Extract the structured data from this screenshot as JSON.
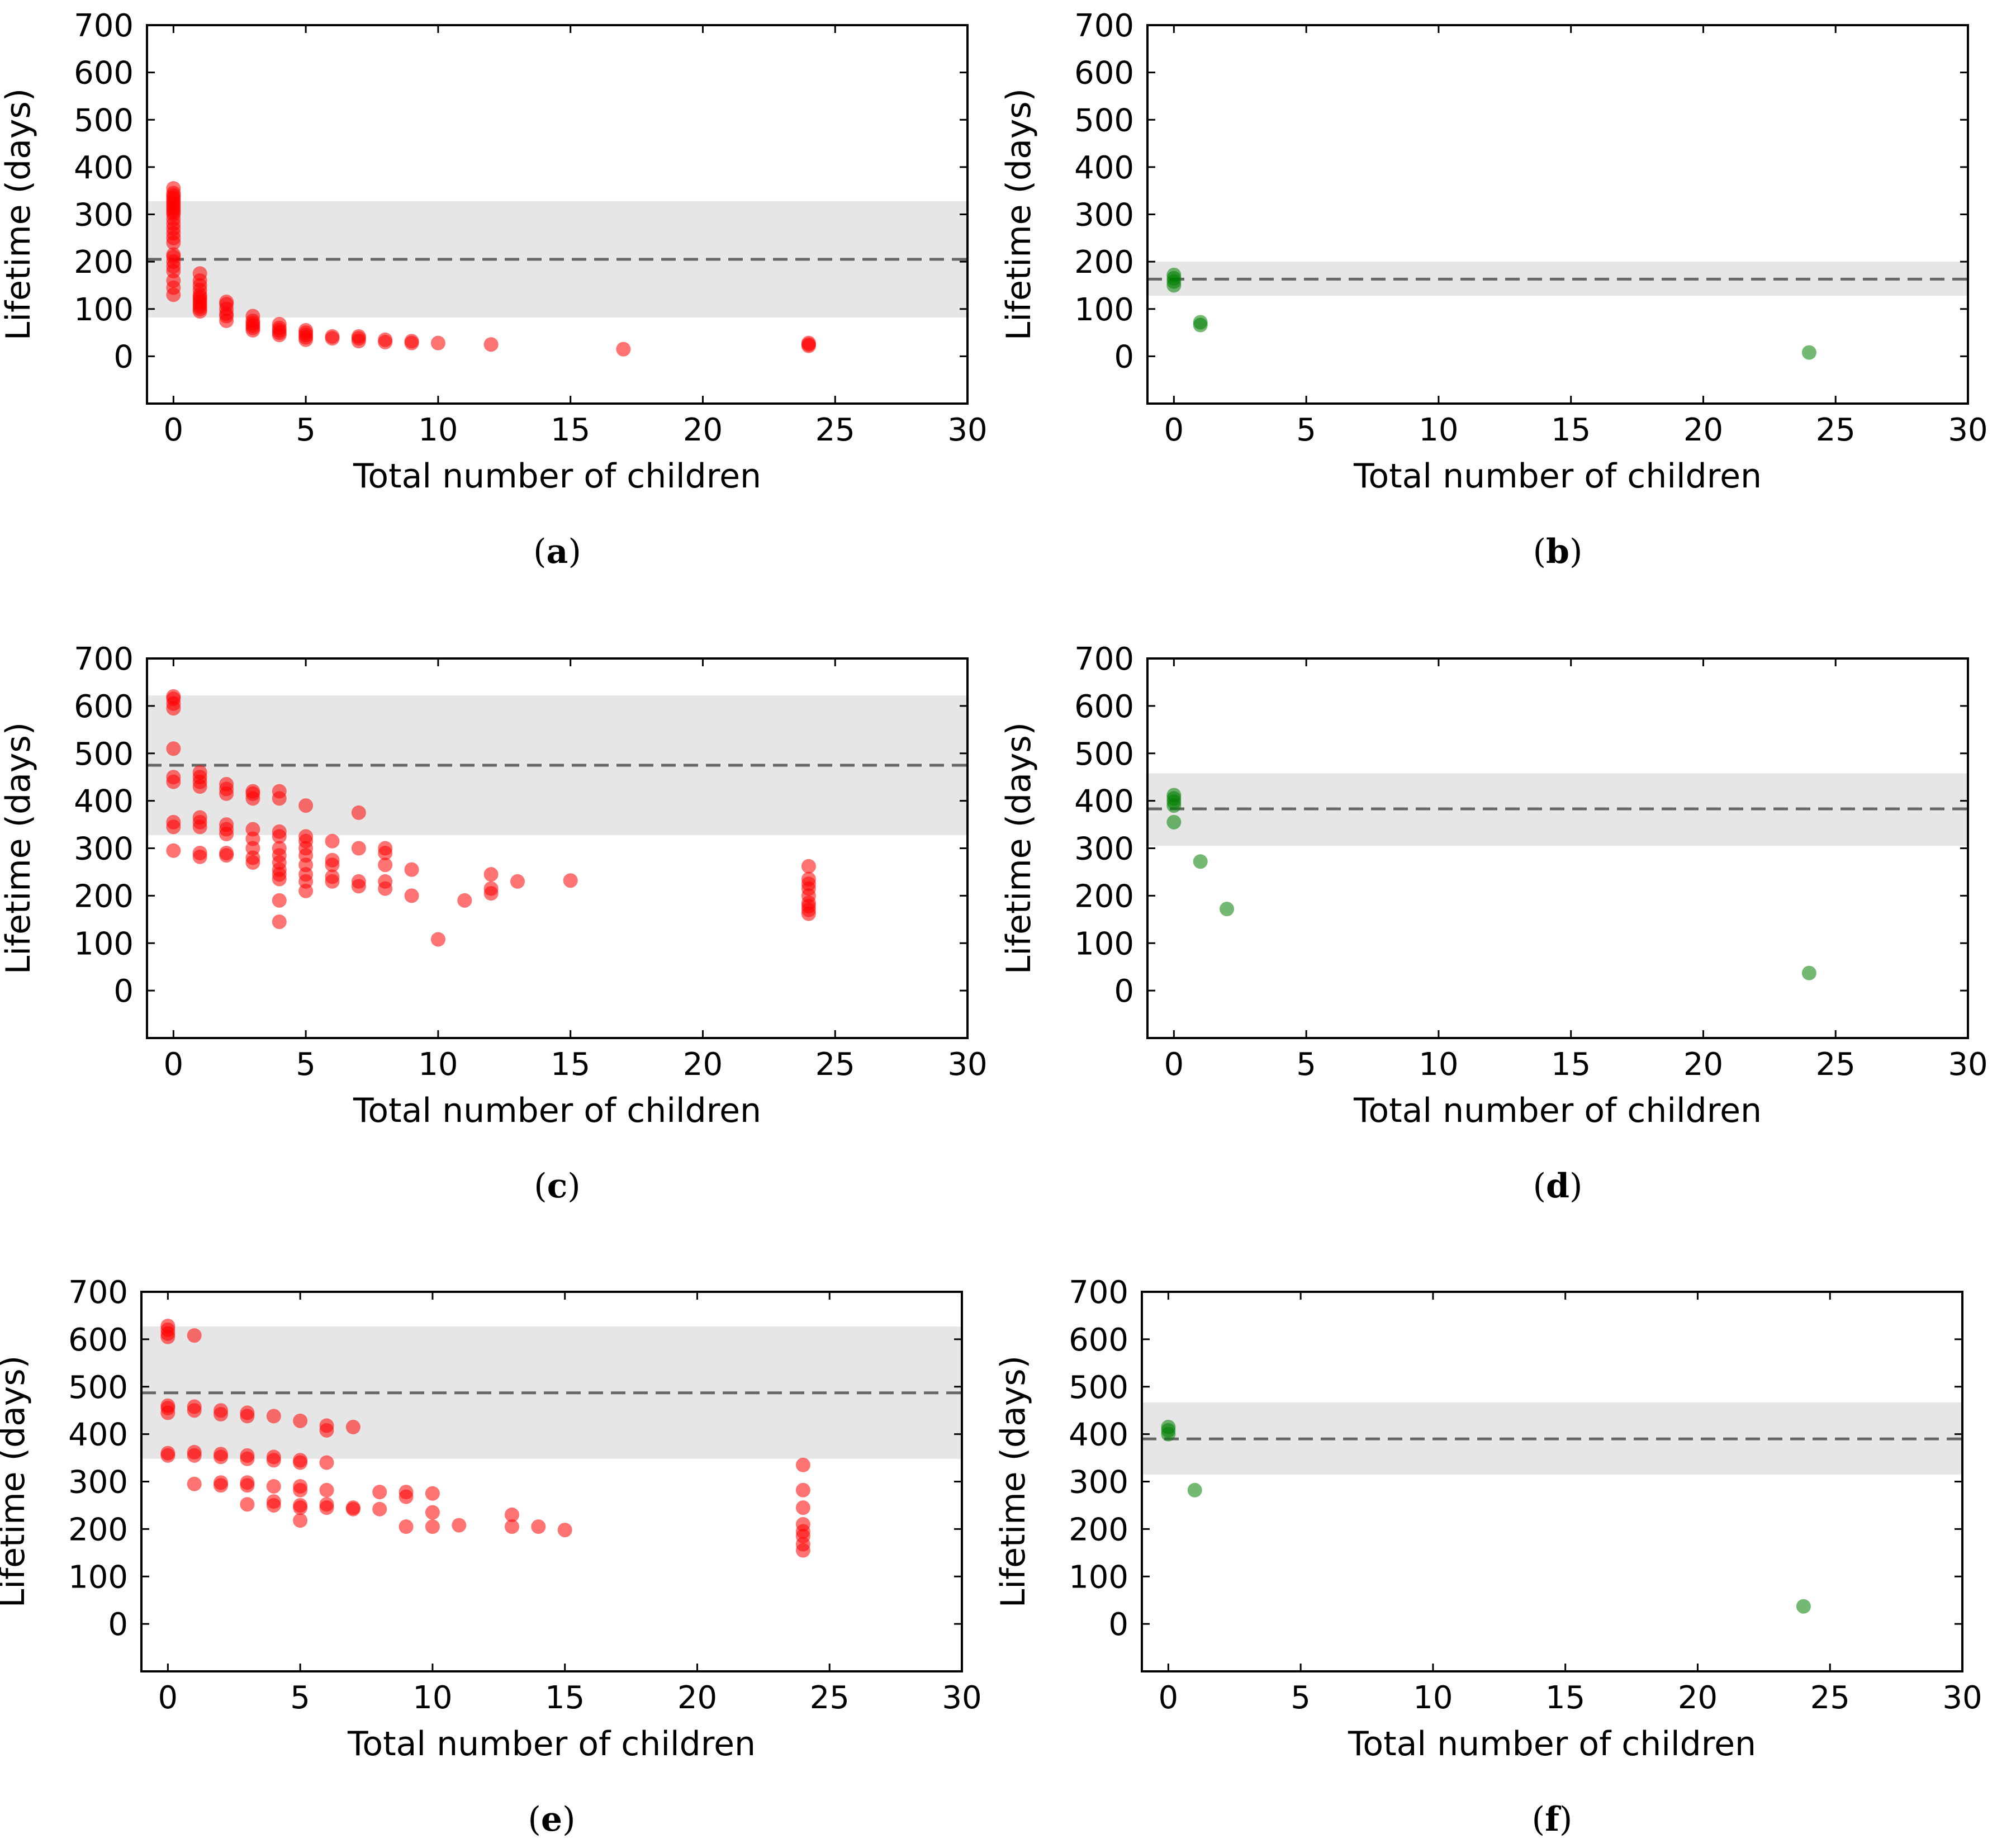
{
  "chart_data": [
    {
      "panel": "a",
      "caption_letter": "a",
      "type": "scatter",
      "xlabel": "Total number of children",
      "ylabel": "Lifetime (days)",
      "xlim": [
        -1,
        30
      ],
      "ylim": [
        -100,
        700
      ],
      "xticks": [
        0,
        5,
        10,
        15,
        20,
        25,
        30
      ],
      "yticks": [
        0,
        100,
        200,
        300,
        400,
        500,
        600,
        700
      ],
      "colors": {
        "marker": "#ff0000",
        "band": "#e6e6e6",
        "mean_line": "#666666"
      },
      "mean": 205,
      "band": [
        82,
        328
      ],
      "points": [
        [
          0,
          130
        ],
        [
          0,
          145
        ],
        [
          0,
          160
        ],
        [
          0,
          180
        ],
        [
          0,
          190
        ],
        [
          0,
          200
        ],
        [
          0,
          210
        ],
        [
          0,
          215
        ],
        [
          0,
          240
        ],
        [
          0,
          250
        ],
        [
          0,
          260
        ],
        [
          0,
          270
        ],
        [
          0,
          280
        ],
        [
          0,
          290
        ],
        [
          0,
          300
        ],
        [
          0,
          305
        ],
        [
          0,
          310
        ],
        [
          0,
          315
        ],
        [
          0,
          320
        ],
        [
          0,
          325
        ],
        [
          0,
          330
        ],
        [
          0,
          335
        ],
        [
          0,
          340
        ],
        [
          0,
          345
        ],
        [
          0,
          355
        ],
        [
          1,
          95
        ],
        [
          1,
          100
        ],
        [
          1,
          105
        ],
        [
          1,
          110
        ],
        [
          1,
          115
        ],
        [
          1,
          120
        ],
        [
          1,
          125
        ],
        [
          1,
          130
        ],
        [
          1,
          140
        ],
        [
          1,
          150
        ],
        [
          1,
          160
        ],
        [
          1,
          175
        ],
        [
          2,
          75
        ],
        [
          2,
          85
        ],
        [
          2,
          90
        ],
        [
          2,
          100
        ],
        [
          2,
          110
        ],
        [
          2,
          115
        ],
        [
          3,
          55
        ],
        [
          3,
          60
        ],
        [
          3,
          65
        ],
        [
          3,
          70
        ],
        [
          3,
          75
        ],
        [
          3,
          85
        ],
        [
          4,
          45
        ],
        [
          4,
          50
        ],
        [
          4,
          55
        ],
        [
          4,
          60
        ],
        [
          4,
          68
        ],
        [
          5,
          35
        ],
        [
          5,
          40
        ],
        [
          5,
          45
        ],
        [
          5,
          50
        ],
        [
          5,
          55
        ],
        [
          6,
          38
        ],
        [
          6,
          42
        ],
        [
          7,
          32
        ],
        [
          7,
          38
        ],
        [
          7,
          42
        ],
        [
          8,
          30
        ],
        [
          8,
          35
        ],
        [
          9,
          28
        ],
        [
          9,
          32
        ],
        [
          10,
          28
        ],
        [
          12,
          25
        ],
        [
          17,
          15
        ],
        [
          24,
          22
        ],
        [
          24,
          25
        ],
        [
          24,
          28
        ]
      ]
    },
    {
      "panel": "b",
      "caption_letter": "b",
      "type": "scatter",
      "xlabel": "Total number of children",
      "ylabel": "Lifetime (days)",
      "xlim": [
        -1,
        30
      ],
      "ylim": [
        -100,
        700
      ],
      "xticks": [
        0,
        5,
        10,
        15,
        20,
        25,
        30
      ],
      "yticks": [
        0,
        100,
        200,
        300,
        400,
        500,
        600,
        700
      ],
      "colors": {
        "marker": "#007f00",
        "band": "#e6e6e6",
        "mean_line": "#666666"
      },
      "mean": 163,
      "band": [
        128,
        200
      ],
      "points": [
        [
          0,
          150
        ],
        [
          0,
          158
        ],
        [
          0,
          165
        ],
        [
          0,
          172
        ],
        [
          1,
          66
        ],
        [
          1,
          72
        ],
        [
          24,
          8
        ]
      ]
    },
    {
      "panel": "c",
      "caption_letter": "c",
      "type": "scatter",
      "xlabel": "Total number of children",
      "ylabel": "Lifetime (days)",
      "xlim": [
        -1,
        30
      ],
      "ylim": [
        -100,
        700
      ],
      "xticks": [
        0,
        5,
        10,
        15,
        20,
        25,
        30
      ],
      "yticks": [
        0,
        100,
        200,
        300,
        400,
        500,
        600,
        700
      ],
      "colors": {
        "marker": "#ff0000",
        "band": "#e6e6e6",
        "mean_line": "#666666"
      },
      "mean": 475,
      "band": [
        328,
        622
      ],
      "points": [
        [
          0,
          295
        ],
        [
          0,
          345
        ],
        [
          0,
          355
        ],
        [
          0,
          440
        ],
        [
          0,
          450
        ],
        [
          0,
          510
        ],
        [
          0,
          595
        ],
        [
          0,
          605
        ],
        [
          0,
          615
        ],
        [
          0,
          620
        ],
        [
          1,
          282
        ],
        [
          1,
          290
        ],
        [
          1,
          345
        ],
        [
          1,
          355
        ],
        [
          1,
          365
        ],
        [
          1,
          430
        ],
        [
          1,
          440
        ],
        [
          1,
          450
        ],
        [
          1,
          460
        ],
        [
          2,
          285
        ],
        [
          2,
          290
        ],
        [
          2,
          330
        ],
        [
          2,
          340
        ],
        [
          2,
          350
        ],
        [
          2,
          415
        ],
        [
          2,
          425
        ],
        [
          2,
          435
        ],
        [
          3,
          270
        ],
        [
          3,
          280
        ],
        [
          3,
          300
        ],
        [
          3,
          320
        ],
        [
          3,
          340
        ],
        [
          3,
          405
        ],
        [
          3,
          415
        ],
        [
          3,
          420
        ],
        [
          4,
          145
        ],
        [
          4,
          190
        ],
        [
          4,
          235
        ],
        [
          4,
          245
        ],
        [
          4,
          255
        ],
        [
          4,
          270
        ],
        [
          4,
          285
        ],
        [
          4,
          300
        ],
        [
          4,
          325
        ],
        [
          4,
          335
        ],
        [
          4,
          405
        ],
        [
          4,
          420
        ],
        [
          5,
          210
        ],
        [
          5,
          230
        ],
        [
          5,
          245
        ],
        [
          5,
          265
        ],
        [
          5,
          285
        ],
        [
          5,
          300
        ],
        [
          5,
          315
        ],
        [
          5,
          325
        ],
        [
          5,
          390
        ],
        [
          6,
          230
        ],
        [
          6,
          240
        ],
        [
          6,
          265
        ],
        [
          6,
          275
        ],
        [
          6,
          315
        ],
        [
          7,
          220
        ],
        [
          7,
          230
        ],
        [
          7,
          300
        ],
        [
          7,
          375
        ],
        [
          8,
          215
        ],
        [
          8,
          230
        ],
        [
          8,
          265
        ],
        [
          8,
          290
        ],
        [
          8,
          300
        ],
        [
          9,
          200
        ],
        [
          9,
          255
        ],
        [
          10,
          108
        ],
        [
          11,
          190
        ],
        [
          12,
          205
        ],
        [
          12,
          215
        ],
        [
          12,
          245
        ],
        [
          13,
          230
        ],
        [
          15,
          232
        ],
        [
          24,
          162
        ],
        [
          24,
          170
        ],
        [
          24,
          178
        ],
        [
          24,
          185
        ],
        [
          24,
          200
        ],
        [
          24,
          215
        ],
        [
          24,
          225
        ],
        [
          24,
          235
        ],
        [
          24,
          262
        ]
      ]
    },
    {
      "panel": "d",
      "caption_letter": "d",
      "type": "scatter",
      "xlabel": "Total number of children",
      "ylabel": "Lifetime (days)",
      "xlim": [
        -1,
        30
      ],
      "ylim": [
        -100,
        700
      ],
      "xticks": [
        0,
        5,
        10,
        15,
        20,
        25,
        30
      ],
      "yticks": [
        0,
        100,
        200,
        300,
        400,
        500,
        600,
        700
      ],
      "colors": {
        "marker": "#007f00",
        "band": "#e6e6e6",
        "mean_line": "#666666"
      },
      "mean": 383,
      "band": [
        305,
        458
      ],
      "points": [
        [
          0,
          355
        ],
        [
          0,
          390
        ],
        [
          0,
          398
        ],
        [
          0,
          405
        ],
        [
          0,
          412
        ],
        [
          1,
          272
        ],
        [
          2,
          172
        ],
        [
          24,
          37
        ]
      ]
    },
    {
      "panel": "e",
      "caption_letter": "e",
      "type": "scatter",
      "xlabel": "Total number of children",
      "ylabel": "Lifetime (days)",
      "xlim": [
        -1,
        30
      ],
      "ylim": [
        -100,
        700
      ],
      "xticks": [
        0,
        5,
        10,
        15,
        20,
        25,
        30
      ],
      "yticks": [
        0,
        100,
        200,
        300,
        400,
        500,
        600,
        700
      ],
      "colors": {
        "marker": "#ff0000",
        "band": "#e6e6e6",
        "mean_line": "#666666"
      },
      "mean": 487,
      "band": [
        348,
        627
      ],
      "points": [
        [
          0,
          355
        ],
        [
          0,
          360
        ],
        [
          0,
          445
        ],
        [
          0,
          455
        ],
        [
          0,
          460
        ],
        [
          0,
          605
        ],
        [
          0,
          612
        ],
        [
          0,
          620
        ],
        [
          0,
          628
        ],
        [
          1,
          295
        ],
        [
          1,
          355
        ],
        [
          1,
          362
        ],
        [
          1,
          450
        ],
        [
          1,
          458
        ],
        [
          1,
          608
        ],
        [
          2,
          292
        ],
        [
          2,
          298
        ],
        [
          2,
          352
        ],
        [
          2,
          358
        ],
        [
          2,
          442
        ],
        [
          2,
          450
        ],
        [
          3,
          252
        ],
        [
          3,
          292
        ],
        [
          3,
          298
        ],
        [
          3,
          348
        ],
        [
          3,
          355
        ],
        [
          3,
          438
        ],
        [
          3,
          445
        ],
        [
          4,
          250
        ],
        [
          4,
          258
        ],
        [
          4,
          290
        ],
        [
          4,
          345
        ],
        [
          4,
          352
        ],
        [
          4,
          438
        ],
        [
          5,
          218
        ],
        [
          5,
          245
        ],
        [
          5,
          250
        ],
        [
          5,
          282
        ],
        [
          5,
          290
        ],
        [
          5,
          340
        ],
        [
          5,
          345
        ],
        [
          5,
          428
        ],
        [
          6,
          245
        ],
        [
          6,
          252
        ],
        [
          6,
          282
        ],
        [
          6,
          340
        ],
        [
          6,
          408
        ],
        [
          6,
          418
        ],
        [
          7,
          242
        ],
        [
          7,
          245
        ],
        [
          7,
          415
        ],
        [
          8,
          242
        ],
        [
          8,
          278
        ],
        [
          9,
          205
        ],
        [
          9,
          268
        ],
        [
          9,
          278
        ],
        [
          10,
          205
        ],
        [
          10,
          235
        ],
        [
          10,
          275
        ],
        [
          11,
          208
        ],
        [
          13,
          205
        ],
        [
          13,
          230
        ],
        [
          14,
          205
        ],
        [
          15,
          198
        ],
        [
          24,
          155
        ],
        [
          24,
          168
        ],
        [
          24,
          185
        ],
        [
          24,
          195
        ],
        [
          24,
          210
        ],
        [
          24,
          245
        ],
        [
          24,
          282
        ],
        [
          24,
          335
        ]
      ]
    },
    {
      "panel": "f",
      "caption_letter": "f",
      "type": "scatter",
      "xlabel": "Total number of children",
      "ylabel": "Lifetime (days)",
      "xlim": [
        -1,
        30
      ],
      "ylim": [
        -100,
        700
      ],
      "xticks": [
        0,
        5,
        10,
        15,
        20,
        25,
        30
      ],
      "yticks": [
        0,
        100,
        200,
        300,
        400,
        500,
        600,
        700
      ],
      "colors": {
        "marker": "#007f00",
        "band": "#e6e6e6",
        "mean_line": "#666666"
      },
      "mean": 390,
      "band": [
        315,
        467
      ],
      "points": [
        [
          0,
          400
        ],
        [
          0,
          408
        ],
        [
          0,
          415
        ],
        [
          1,
          282
        ],
        [
          24,
          37
        ]
      ]
    }
  ]
}
